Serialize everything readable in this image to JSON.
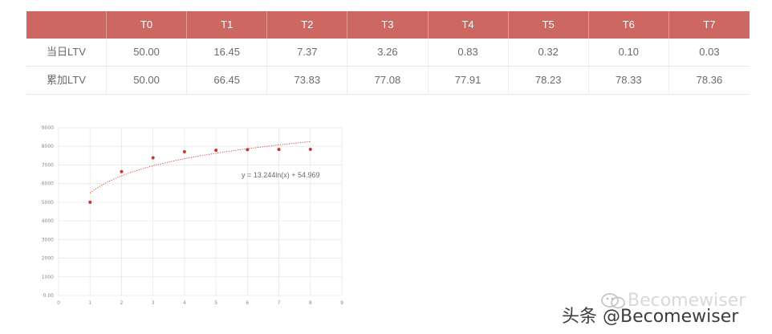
{
  "table": {
    "headers": [
      "",
      "T0",
      "T1",
      "T2",
      "T3",
      "T4",
      "T5",
      "T6",
      "T7"
    ],
    "rows": [
      {
        "label": "当日LTV",
        "values": [
          "50.00",
          "16.45",
          "7.37",
          "3.26",
          "0.83",
          "0.32",
          "0.10",
          "0.03"
        ]
      },
      {
        "label": "累加LTV",
        "values": [
          "50.00",
          "66.45",
          "73.83",
          "77.08",
          "77.91",
          "78.23",
          "78.33",
          "78.36"
        ]
      }
    ]
  },
  "chart_data": {
    "type": "scatter",
    "x": [
      1,
      2,
      3,
      4,
      5,
      6,
      7,
      8
    ],
    "y": [
      5000,
      6645,
      7383,
      7708,
      7791,
      7823,
      7833,
      7836
    ],
    "xlim": [
      0,
      9
    ],
    "ylim": [
      0,
      9000
    ],
    "x_ticks": [
      "0",
      "1",
      "2",
      "3",
      "4",
      "5",
      "6",
      "7",
      "8",
      "9"
    ],
    "y_ticks": [
      "0.00",
      "1000",
      "2000",
      "3000",
      "4000",
      "5000",
      "6000",
      "7000",
      "8000",
      "9000"
    ],
    "trendline": {
      "type": "logarithmic",
      "a": 1324.4,
      "b": 5496.9,
      "x_range": [
        1,
        8
      ]
    },
    "trendline_label": "y = 13.244ln(x) + 54.969",
    "grid": true,
    "colors": {
      "points": "#c0392b",
      "trendline": "#c0392b",
      "grid": "#e8e8e8"
    }
  },
  "watermark": {
    "front_text": "头条 @Becomewiser",
    "back_text": "Becomewiser",
    "icon": "wechat-icon"
  }
}
